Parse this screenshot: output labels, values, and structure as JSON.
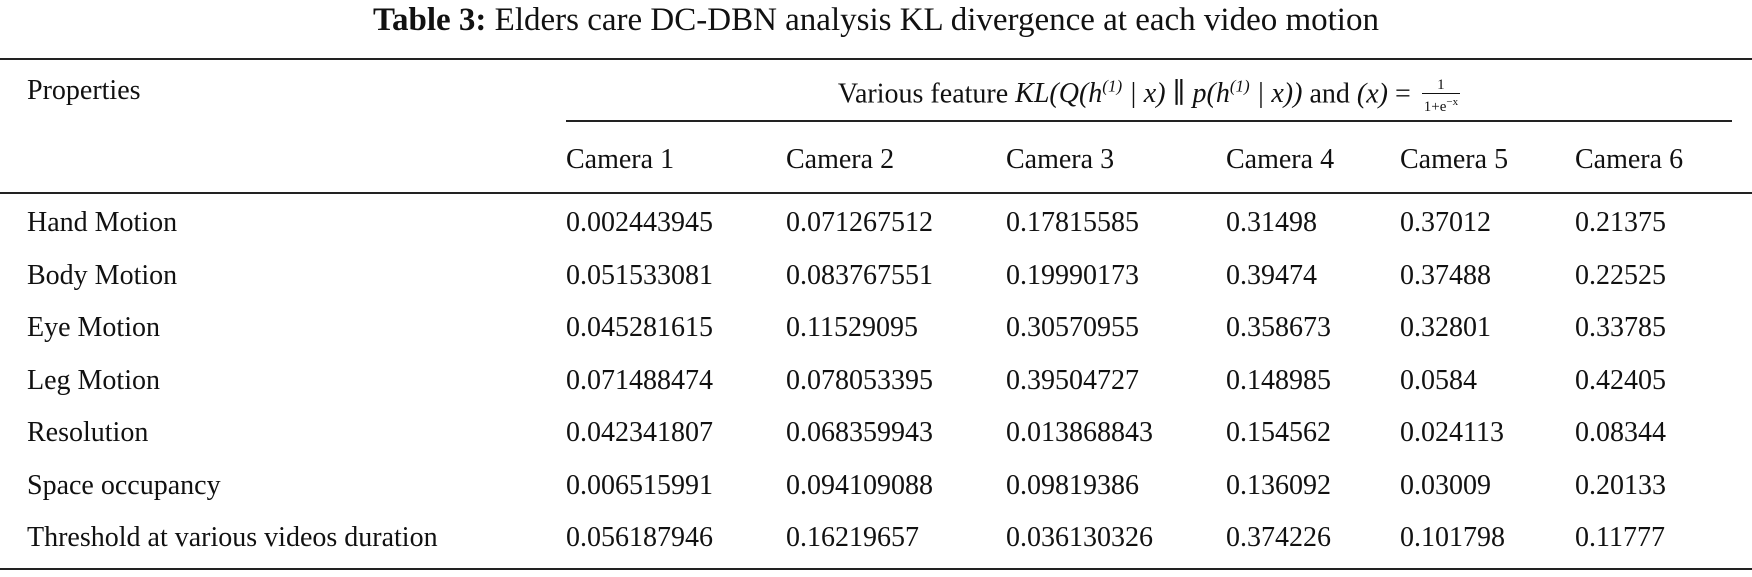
{
  "caption": {
    "label": "Table 3:",
    "text": "Elders care DC-DBN analysis KL divergence at each video motion"
  },
  "header": {
    "properties": "Properties",
    "span_prefix": "Various feature",
    "span_formula": "KL(Q(h(1) | x) ∥ p(h(1) | x)) and (x) = 1/(1+e^−x)",
    "cameras": [
      "Camera 1",
      "Camera 2",
      "Camera 3",
      "Camera 4",
      "Camera 5",
      "Camera 6"
    ]
  },
  "rows": [
    {
      "label": "Hand Motion",
      "values": [
        "0.002443945",
        "0.071267512",
        "0.17815585",
        "0.31498",
        "0.37012",
        "0.21375"
      ]
    },
    {
      "label": "Body Motion",
      "values": [
        "0.051533081",
        "0.083767551",
        "0.19990173",
        "0.39474",
        "0.37488",
        "0.22525"
      ]
    },
    {
      "label": "Eye Motion",
      "values": [
        "0.045281615",
        "0.11529095",
        "0.30570955",
        "0.358673",
        "0.32801",
        "0.33785"
      ]
    },
    {
      "label": "Leg Motion",
      "values": [
        "0.071488474",
        "0.078053395",
        "0.39504727",
        "0.148985",
        "0.0584",
        "0.42405"
      ]
    },
    {
      "label": "Resolution",
      "values": [
        "0.042341807",
        "0.068359943",
        "0.013868843",
        "0.154562",
        "0.024113",
        "0.08344"
      ]
    },
    {
      "label": "Space occupancy",
      "values": [
        "0.006515991",
        "0.094109088",
        "0.09819386",
        "0.136092",
        "0.03009",
        "0.20133"
      ]
    },
    {
      "label": "Threshold at various videos duration",
      "values": [
        "0.056187946",
        "0.16219657",
        "0.036130326",
        "0.374226",
        "0.101798",
        "0.11777"
      ]
    }
  ]
}
